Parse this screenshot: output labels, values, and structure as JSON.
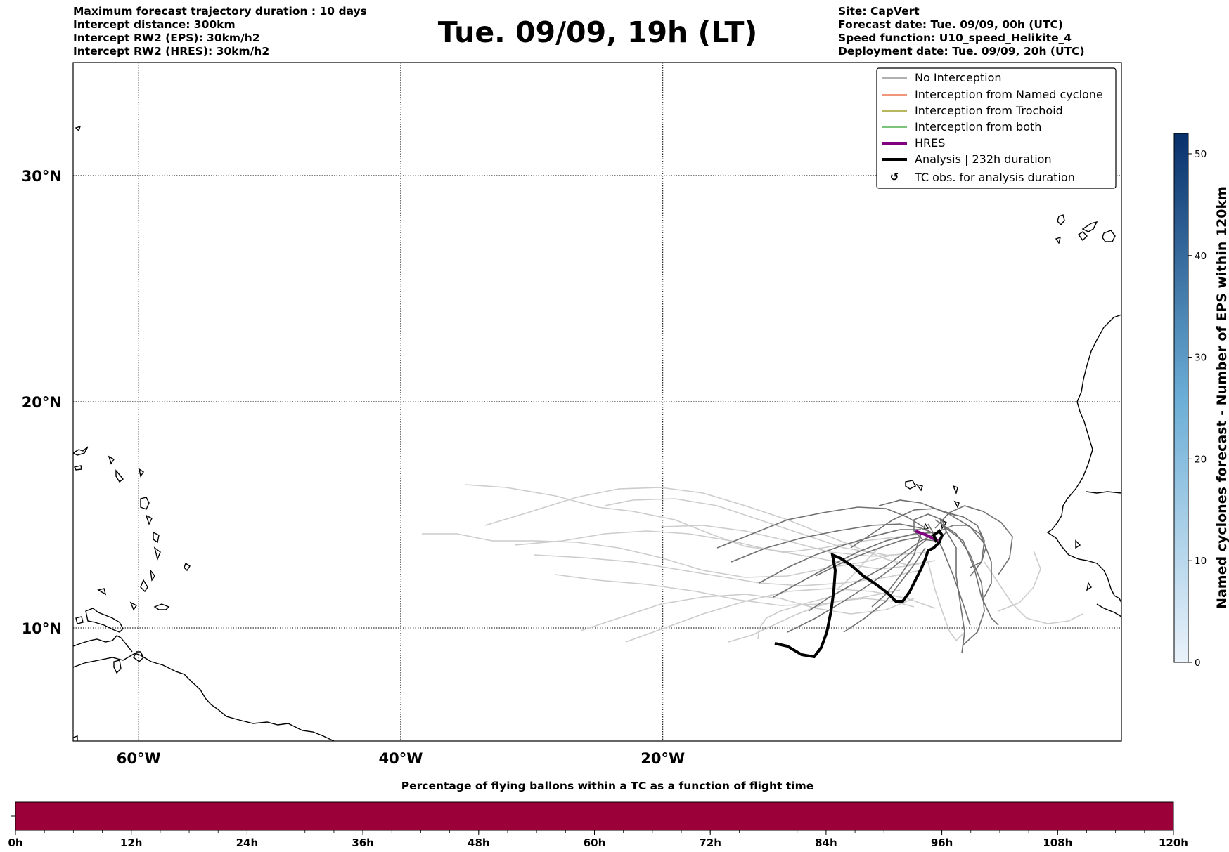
{
  "header": {
    "left_lines": [
      "Maximum forecast trajectory duration : 10 days",
      "Intercept distance: 300km",
      "Intercept RW2 (EPS):  30km/h2",
      "Intercept RW2 (HRES): 30km/h2"
    ],
    "title": "Tue. 09/09, 19h (LT)",
    "right_lines": [
      "Site: CapVert",
      "Forecast date: Tue. 09/09, 00h (UTC)",
      "Speed function: U10_speed_Helikite_4",
      "Deployment date: Tue. 09/09, 20h (UTC)"
    ]
  },
  "map": {
    "lon_range": [
      -65,
      15
    ],
    "lat_range": [
      5,
      35
    ],
    "lon_ticks": [
      {
        "value": -60,
        "label": "60°W"
      },
      {
        "value": -40,
        "label": "40°W"
      },
      {
        "value": -20,
        "label": "20°W"
      }
    ],
    "lat_ticks": [
      {
        "value": 30,
        "label": "30°N"
      },
      {
        "value": 20,
        "label": "20°N"
      },
      {
        "value": 10,
        "label": "10°N"
      }
    ],
    "legend": {
      "placement": "top-right",
      "items": [
        {
          "label": "No Interception",
          "color": "#808080",
          "style": "thin-line"
        },
        {
          "label": "Interception from Named cyclone",
          "color": "#e8582a",
          "style": "thin-line"
        },
        {
          "label": "Interception from Trochoid",
          "color": "#8c8c00",
          "style": "thin-line"
        },
        {
          "label": "Interception from both",
          "color": "#2ca02c",
          "style": "thin-line"
        },
        {
          "label": "HRES",
          "color": "#800080",
          "style": "thick-line"
        },
        {
          "label": "Analysis | 232h duration",
          "color": "#000000",
          "style": "thick-line"
        },
        {
          "label": "TC obs. for analysis duration",
          "color": "#000000",
          "style": "cyclone-symbol"
        }
      ]
    }
  },
  "colorbar_right": {
    "label": "Named cyclones forecast - Number of EPS within 120km",
    "ticks": [
      "0",
      "10",
      "20",
      "30",
      "40",
      "50"
    ],
    "range": [
      0,
      52
    ],
    "color_low": "#eaf2fb",
    "color_high": "#08306b"
  },
  "timebar": {
    "title": "Percentage of flying ballons within a TC as a function of flight time",
    "ticks": [
      "0h",
      "12h",
      "24h",
      "36h",
      "48h",
      "60h",
      "72h",
      "84h",
      "96h",
      "108h",
      "120h"
    ],
    "color": "#9b0039"
  }
}
